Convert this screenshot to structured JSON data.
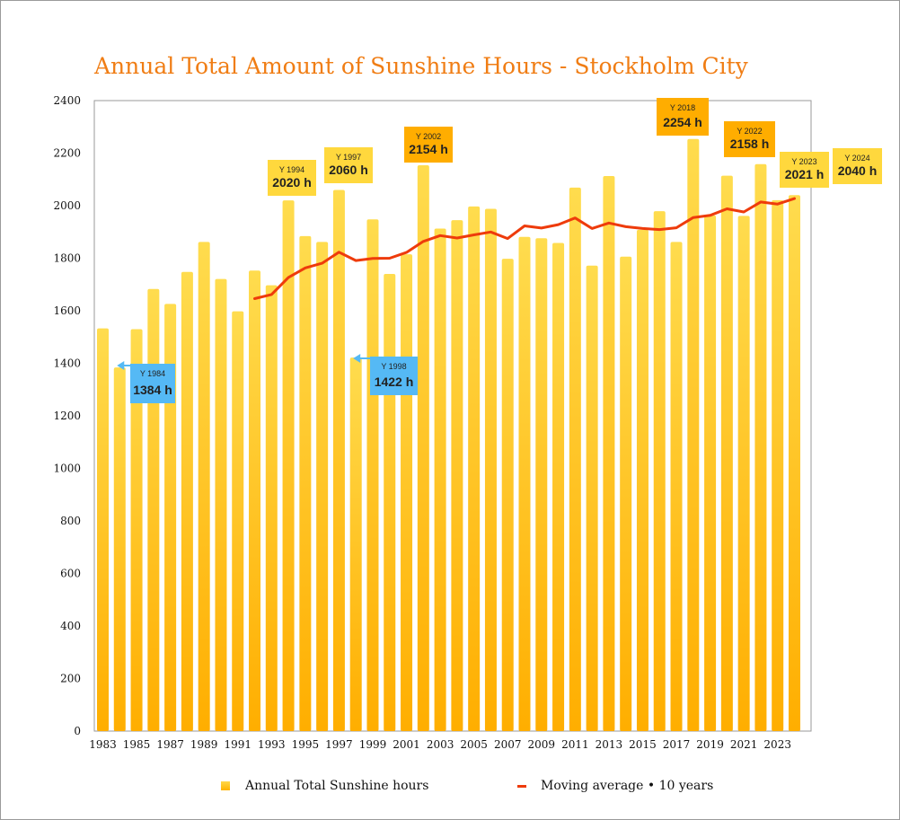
{
  "chart_data": {
    "type": "bar",
    "title": "Annual Total Amount of Sunshine Hours - Stockholm City",
    "xlabel": "",
    "ylabel": "",
    "ylim": [
      0,
      2400
    ],
    "yticks": [
      0,
      200,
      400,
      600,
      800,
      1000,
      1200,
      1400,
      1600,
      1800,
      2000,
      2200,
      2400
    ],
    "categories": [
      1983,
      1984,
      1985,
      1986,
      1987,
      1988,
      1989,
      1990,
      1991,
      1992,
      1993,
      1994,
      1995,
      1996,
      1997,
      1998,
      1999,
      2000,
      2001,
      2002,
      2003,
      2004,
      2005,
      2006,
      2007,
      2008,
      2009,
      2010,
      2011,
      2012,
      2013,
      2014,
      2015,
      2016,
      2017,
      2018,
      2019,
      2020,
      2021,
      2022,
      2023,
      2024
    ],
    "x_tick_labels": [
      "1983",
      "1985",
      "1987",
      "1989",
      "1991",
      "1993",
      "1995",
      "1997",
      "1999",
      "2001",
      "2003",
      "2005",
      "2007",
      "2009",
      "2011",
      "2013",
      "2015",
      "2017",
      "2019",
      "2021",
      "2023"
    ],
    "grid": false,
    "legend_position": "bottom",
    "series": [
      {
        "name": "Annual Total Sunshine hours",
        "type": "bar",
        "color_top": "#ffdc4e",
        "color_bottom": "#ffae00",
        "values": [
          1533,
          1384,
          1530,
          1683,
          1626,
          1748,
          1862,
          1721,
          1598,
          1753,
          1697,
          2020,
          1884,
          1862,
          2060,
          1422,
          1948,
          1740,
          1815,
          2154,
          1913,
          1945,
          1997,
          1988,
          1798,
          1881,
          1876,
          1858,
          2069,
          1772,
          2113,
          1806,
          1908,
          1979,
          1862,
          2254,
          1963,
          2114,
          1961,
          2158,
          2021,
          2040
        ]
      },
      {
        "name": "Moving average • 10 years",
        "type": "line",
        "color": "#ee3b0b",
        "x": [
          1992,
          1993,
          1994,
          1995,
          1996,
          1997,
          1998,
          1999,
          2000,
          2001,
          2002,
          2003,
          2004,
          2005,
          2006,
          2007,
          2008,
          2009,
          2010,
          2011,
          2012,
          2013,
          2014,
          2015,
          2016,
          2017,
          2018,
          2019,
          2020,
          2021,
          2022,
          2023,
          2024
        ],
        "values": [
          1646,
          1662,
          1727,
          1763,
          1781,
          1823,
          1791,
          1799,
          1800,
          1822,
          1864,
          1886,
          1877,
          1889,
          1900,
          1875,
          1923,
          1915,
          1928,
          1953,
          1913,
          1934,
          1920,
          1913,
          1909,
          1916,
          1955,
          1963,
          1988,
          1976,
          2014,
          2006,
          2027
        ]
      }
    ],
    "annotations": [
      {
        "year": 1984,
        "label": "Y 1984",
        "value": "1384 h",
        "color": "#55b9f5"
      },
      {
        "year": 1994,
        "label": "Y 1994",
        "value": "2020 h",
        "color": "#ffd83d"
      },
      {
        "year": 1997,
        "label": "Y 1997",
        "value": "2060 h",
        "color": "#ffd83d"
      },
      {
        "year": 1998,
        "label": "Y 1998",
        "value": "1422 h",
        "color": "#55b9f5"
      },
      {
        "year": 2002,
        "label": "Y 2002",
        "value": "2154 h",
        "color": "#ffad00"
      },
      {
        "year": 2018,
        "label": "Y 2018",
        "value": "2254 h",
        "color": "#ffad00"
      },
      {
        "year": 2022,
        "label": "Y 2022",
        "value": "2158 h",
        "color": "#ffad00"
      },
      {
        "year": 2023,
        "label": "Y 2023",
        "value": "2021 h",
        "color": "#ffd83d"
      },
      {
        "year": 2024,
        "label": "Y 2024",
        "value": "2040 h",
        "color": "#ffd83d"
      }
    ]
  }
}
